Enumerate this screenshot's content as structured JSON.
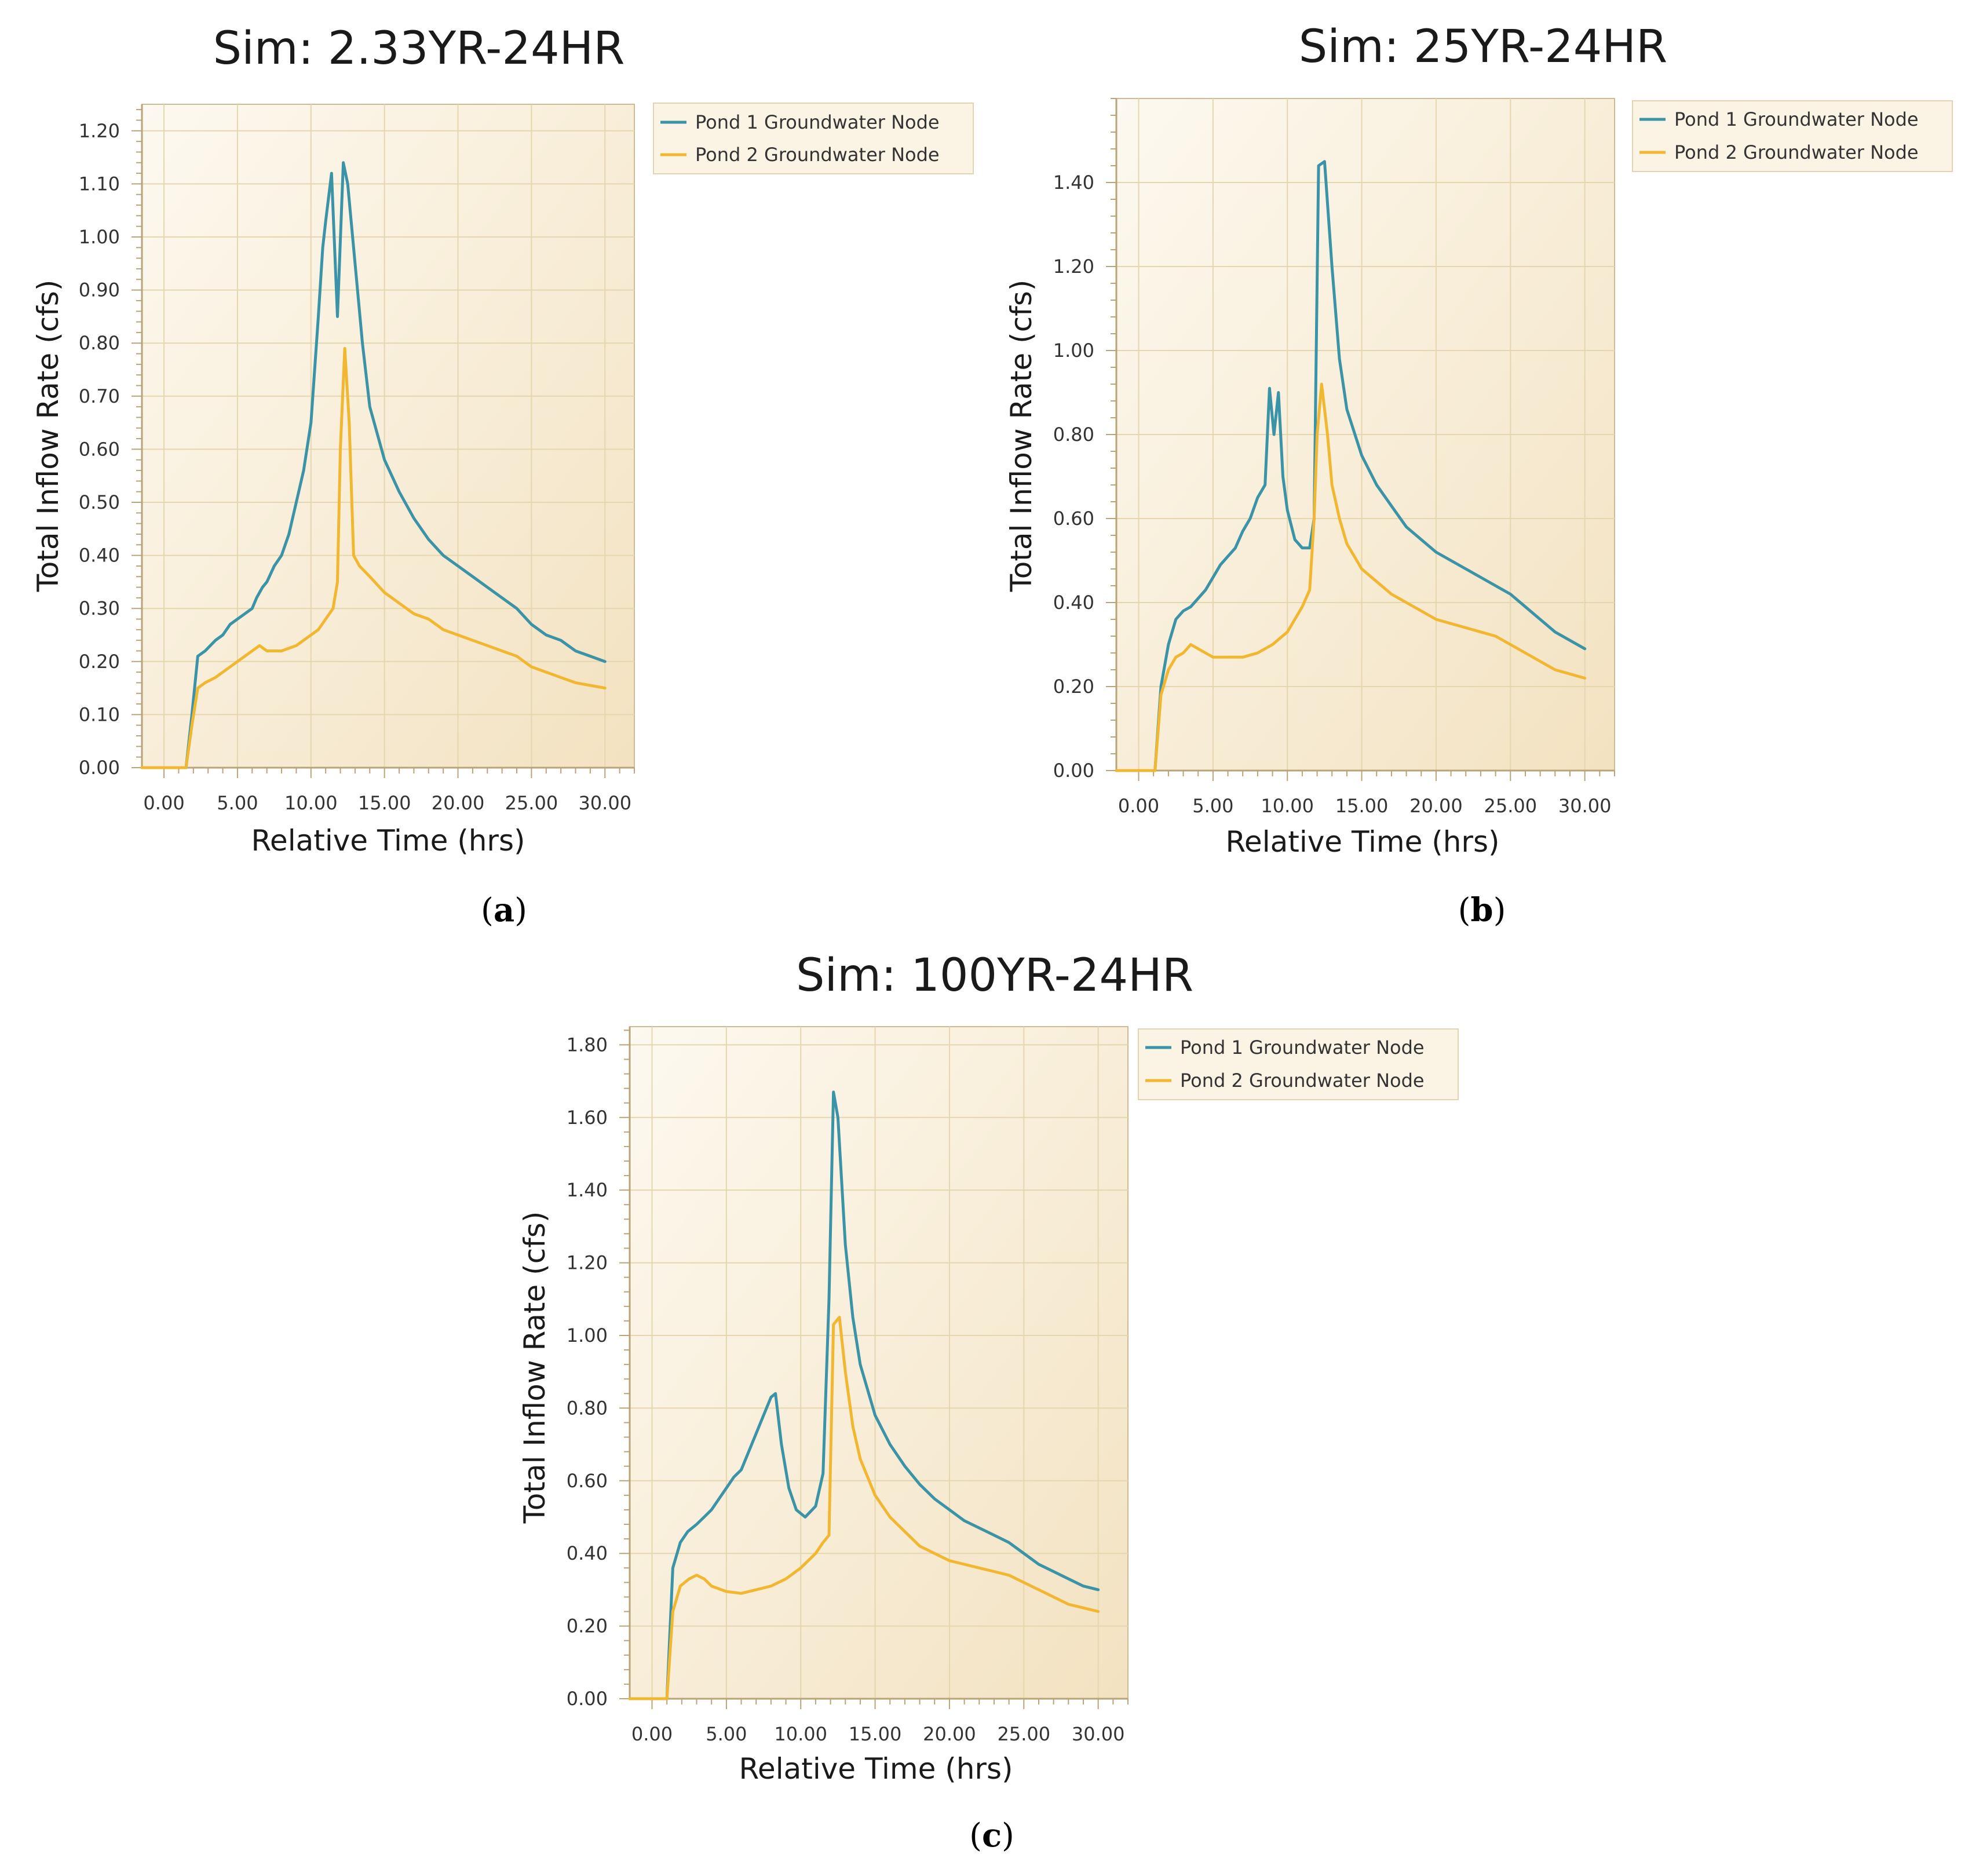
{
  "chart_data": [
    {
      "type": "line",
      "panel": "a",
      "title": "Sim: 2.33YR-24HR",
      "xlabel": "Relative Time (hrs)",
      "ylabel": "Total Inflow Rate (cfs)",
      "xlim": [
        -1.5,
        32
      ],
      "ylim": [
        0,
        1.25
      ],
      "xticks": [
        0,
        5,
        10,
        15,
        20,
        25,
        30
      ],
      "xtick_labels": [
        "0.00",
        "5.00",
        "10.00",
        "15.00",
        "20.00",
        "25.00",
        "30.00"
      ],
      "yticks": [
        0,
        0.1,
        0.2,
        0.3,
        0.4,
        0.5,
        0.6,
        0.7,
        0.8,
        0.9,
        1.0,
        1.1,
        1.2
      ],
      "ytick_labels": [
        "0.00",
        "0.10",
        "0.20",
        "0.30",
        "0.40",
        "0.50",
        "0.60",
        "0.70",
        "0.80",
        "0.90",
        "1.00",
        "1.10",
        "1.20"
      ],
      "legend": [
        "Pond 1 Groundwater Node",
        "Pond 2 Groundwater Node"
      ],
      "series": [
        {
          "name": "Pond 1 Groundwater Node",
          "color": "#3a93a6",
          "x": [
            -1.5,
            1.5,
            1.9,
            2.3,
            2.8,
            3.5,
            4.0,
            4.5,
            5.0,
            5.5,
            6.0,
            6.3,
            6.7,
            7.0,
            7.5,
            8.0,
            8.5,
            9.0,
            9.5,
            10.0,
            10.5,
            10.8,
            11.0,
            11.4,
            11.8,
            12.2,
            12.5,
            13.0,
            13.5,
            14.0,
            15.0,
            16.0,
            17.0,
            18.0,
            19.0,
            20.0,
            21.0,
            22.0,
            23.0,
            24.0,
            25.0,
            26.0,
            27.0,
            28.0,
            29.0,
            30.0
          ],
          "y": [
            0,
            0,
            0.1,
            0.21,
            0.22,
            0.24,
            0.25,
            0.27,
            0.28,
            0.29,
            0.3,
            0.32,
            0.34,
            0.35,
            0.38,
            0.4,
            0.44,
            0.5,
            0.56,
            0.65,
            0.85,
            0.98,
            1.03,
            1.12,
            0.85,
            1.14,
            1.1,
            0.95,
            0.8,
            0.68,
            0.58,
            0.52,
            0.47,
            0.43,
            0.4,
            0.38,
            0.36,
            0.34,
            0.32,
            0.3,
            0.27,
            0.25,
            0.24,
            0.22,
            0.21,
            0.2
          ]
        },
        {
          "name": "Pond 2 Groundwater Node",
          "color": "#f2b731",
          "x": [
            -1.5,
            1.5,
            1.9,
            2.3,
            2.8,
            3.5,
            4.0,
            4.5,
            5.0,
            5.5,
            6.0,
            6.5,
            7.0,
            8.0,
            9.0,
            10.0,
            10.5,
            11.0,
            11.5,
            11.8,
            12.0,
            12.3,
            12.6,
            12.9,
            13.3,
            14.0,
            15.0,
            16.0,
            17.0,
            18.0,
            19.0,
            20.0,
            21.0,
            22.0,
            23.0,
            24.0,
            25.0,
            26.0,
            27.0,
            28.0,
            29.0,
            30.0
          ],
          "y": [
            0,
            0,
            0.08,
            0.15,
            0.16,
            0.17,
            0.18,
            0.19,
            0.2,
            0.21,
            0.22,
            0.23,
            0.22,
            0.22,
            0.23,
            0.25,
            0.26,
            0.28,
            0.3,
            0.35,
            0.6,
            0.79,
            0.65,
            0.4,
            0.38,
            0.36,
            0.33,
            0.31,
            0.29,
            0.28,
            0.26,
            0.25,
            0.24,
            0.23,
            0.22,
            0.21,
            0.19,
            0.18,
            0.17,
            0.16,
            0.155,
            0.15
          ]
        }
      ]
    },
    {
      "type": "line",
      "panel": "b",
      "title": "Sim: 25YR-24HR",
      "xlabel": "Relative Time (hrs)",
      "ylabel": "Total Inflow Rate (cfs)",
      "xlim": [
        -1.5,
        32
      ],
      "ylim": [
        0,
        1.6
      ],
      "xticks": [
        0,
        5,
        10,
        15,
        20,
        25,
        30
      ],
      "xtick_labels": [
        "0.00",
        "5.00",
        "10.00",
        "15.00",
        "20.00",
        "25.00",
        "30.00"
      ],
      "yticks": [
        0,
        0.2,
        0.4,
        0.6,
        0.8,
        1.0,
        1.2,
        1.4
      ],
      "ytick_labels": [
        "0.00",
        "0.20",
        "0.40",
        "0.60",
        "0.80",
        "1.00",
        "1.20",
        "1.40"
      ],
      "legend": [
        "Pond 1 Groundwater Node",
        "Pond 2 Groundwater Node"
      ],
      "series": [
        {
          "name": "Pond 1 Groundwater Node",
          "color": "#3a93a6",
          "x": [
            -1.5,
            1.1,
            1.5,
            2.0,
            2.5,
            3.0,
            3.5,
            4.0,
            4.5,
            5.0,
            5.5,
            6.0,
            6.5,
            7.0,
            7.5,
            8.0,
            8.5,
            8.8,
            9.1,
            9.4,
            9.7,
            10.0,
            10.5,
            11.0,
            11.5,
            11.8,
            12.1,
            12.5,
            13.0,
            13.5,
            14.0,
            15.0,
            16.0,
            17.0,
            18.0,
            19.0,
            20.0,
            21.0,
            22.0,
            23.0,
            24.0,
            25.0,
            26.0,
            27.0,
            28.0,
            29.0,
            30.0
          ],
          "y": [
            0,
            0,
            0.2,
            0.3,
            0.36,
            0.38,
            0.39,
            0.41,
            0.43,
            0.46,
            0.49,
            0.51,
            0.53,
            0.57,
            0.6,
            0.65,
            0.68,
            0.91,
            0.8,
            0.9,
            0.7,
            0.62,
            0.55,
            0.53,
            0.53,
            0.6,
            1.44,
            1.45,
            1.2,
            0.98,
            0.86,
            0.75,
            0.68,
            0.63,
            0.58,
            0.55,
            0.52,
            0.5,
            0.48,
            0.46,
            0.44,
            0.42,
            0.39,
            0.36,
            0.33,
            0.31,
            0.29
          ]
        },
        {
          "name": "Pond 2 Groundwater Node",
          "color": "#f2b731",
          "x": [
            -1.5,
            1.1,
            1.5,
            2.0,
            2.5,
            3.0,
            3.5,
            4.0,
            4.5,
            5.0,
            6.0,
            7.0,
            8.0,
            9.0,
            10.0,
            10.5,
            11.0,
            11.5,
            11.8,
            12.0,
            12.3,
            12.7,
            13.0,
            13.5,
            14.0,
            15.0,
            16.0,
            17.0,
            18.0,
            19.0,
            20.0,
            21.0,
            22.0,
            23.0,
            24.0,
            25.0,
            26.0,
            27.0,
            28.0,
            29.0,
            30.0
          ],
          "y": [
            0,
            0,
            0.18,
            0.24,
            0.27,
            0.28,
            0.3,
            0.29,
            0.28,
            0.27,
            0.27,
            0.27,
            0.28,
            0.3,
            0.33,
            0.36,
            0.39,
            0.43,
            0.6,
            0.8,
            0.92,
            0.8,
            0.68,
            0.6,
            0.54,
            0.48,
            0.45,
            0.42,
            0.4,
            0.38,
            0.36,
            0.35,
            0.34,
            0.33,
            0.32,
            0.3,
            0.28,
            0.26,
            0.24,
            0.23,
            0.22
          ]
        }
      ]
    },
    {
      "type": "line",
      "panel": "c",
      "title": "Sim: 100YR-24HR",
      "xlabel": "Relative Time (hrs)",
      "ylabel": "Total Inflow Rate (cfs)",
      "xlim": [
        -1.5,
        32
      ],
      "ylim": [
        0,
        1.85
      ],
      "xticks": [
        0,
        5,
        10,
        15,
        20,
        25,
        30
      ],
      "xtick_labels": [
        "0.00",
        "5.00",
        "10.00",
        "15.00",
        "20.00",
        "25.00",
        "30.00"
      ],
      "yticks": [
        0,
        0.2,
        0.4,
        0.6,
        0.8,
        1.0,
        1.2,
        1.4,
        1.6,
        1.8
      ],
      "ytick_labels": [
        "0.00",
        "0.20",
        "0.40",
        "0.60",
        "0.80",
        "1.00",
        "1.20",
        "1.40",
        "1.60",
        "1.80"
      ],
      "legend": [
        "Pond 1 Groundwater Node",
        "Pond 2 Groundwater Node"
      ],
      "series": [
        {
          "name": "Pond 1 Groundwater Node",
          "color": "#3a93a6",
          "x": [
            -1.5,
            1.0,
            1.4,
            1.9,
            2.4,
            3.0,
            3.5,
            4.0,
            4.5,
            5.0,
            5.5,
            6.0,
            6.5,
            7.0,
            7.5,
            8.0,
            8.3,
            8.7,
            9.2,
            9.7,
            10.3,
            11.0,
            11.5,
            11.9,
            12.2,
            12.5,
            13.0,
            13.5,
            14.0,
            15.0,
            16.0,
            17.0,
            18.0,
            19.0,
            20.0,
            21.0,
            22.0,
            23.0,
            24.0,
            25.0,
            26.0,
            27.0,
            28.0,
            29.0,
            30.0
          ],
          "y": [
            0,
            0,
            0.36,
            0.43,
            0.46,
            0.48,
            0.5,
            0.52,
            0.55,
            0.58,
            0.61,
            0.63,
            0.68,
            0.73,
            0.78,
            0.83,
            0.84,
            0.7,
            0.58,
            0.52,
            0.5,
            0.53,
            0.62,
            1.1,
            1.67,
            1.6,
            1.25,
            1.05,
            0.92,
            0.78,
            0.7,
            0.64,
            0.59,
            0.55,
            0.52,
            0.49,
            0.47,
            0.45,
            0.43,
            0.4,
            0.37,
            0.35,
            0.33,
            0.31,
            0.3
          ]
        },
        {
          "name": "Pond 2 Groundwater Node",
          "color": "#f2b731",
          "x": [
            -1.5,
            1.0,
            1.4,
            1.9,
            2.5,
            3.0,
            3.5,
            4.0,
            5.0,
            6.0,
            7.0,
            8.0,
            9.0,
            10.0,
            10.5,
            11.0,
            11.5,
            11.9,
            12.2,
            12.6,
            13.0,
            13.5,
            14.0,
            15.0,
            16.0,
            17.0,
            18.0,
            19.0,
            20.0,
            21.0,
            22.0,
            23.0,
            24.0,
            25.0,
            26.0,
            27.0,
            28.0,
            29.0,
            30.0
          ],
          "y": [
            0,
            0,
            0.24,
            0.31,
            0.33,
            0.34,
            0.33,
            0.31,
            0.295,
            0.29,
            0.3,
            0.31,
            0.33,
            0.36,
            0.38,
            0.4,
            0.43,
            0.45,
            1.03,
            1.05,
            0.9,
            0.75,
            0.66,
            0.56,
            0.5,
            0.46,
            0.42,
            0.4,
            0.38,
            0.37,
            0.36,
            0.35,
            0.34,
            0.32,
            0.3,
            0.28,
            0.26,
            0.25,
            0.24
          ]
        }
      ]
    }
  ],
  "panel_labels": [
    "a",
    "b",
    "c"
  ]
}
